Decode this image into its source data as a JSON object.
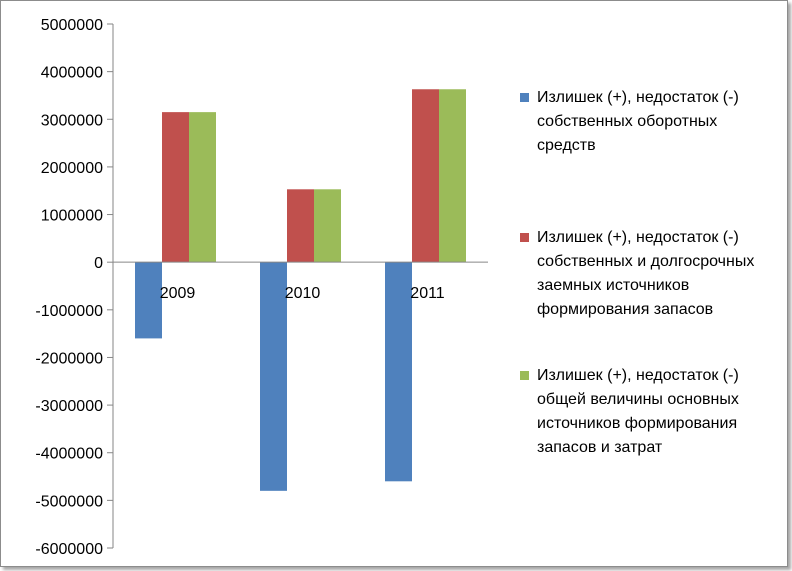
{
  "chart_data": {
    "type": "bar",
    "categories": [
      "2009",
      "2010",
      "2011"
    ],
    "series": [
      {
        "name": "Излишек (+), недостаток (-) собственных оборотных средств",
        "color": "#4f81bd",
        "values": [
          -1600000,
          -4800000,
          -4600000
        ]
      },
      {
        "name": "Излишек (+), недостаток (-) собственных и долгосрочных заемных источников формирования запасов",
        "color": "#c0504d",
        "values": [
          3150000,
          1530000,
          3630000
        ]
      },
      {
        "name": "Излишек (+), недостаток (-) общей величины основных источников формирования запасов и затрат",
        "color": "#9bbb59",
        "values": [
          3150000,
          1530000,
          3630000
        ]
      }
    ],
    "ylim": [
      -6000000,
      5000000
    ],
    "yticks": [
      5000000,
      4000000,
      3000000,
      2000000,
      1000000,
      0,
      -1000000,
      -2000000,
      -3000000,
      -4000000,
      -5000000,
      -6000000
    ],
    "grid": false,
    "legend": "right"
  }
}
